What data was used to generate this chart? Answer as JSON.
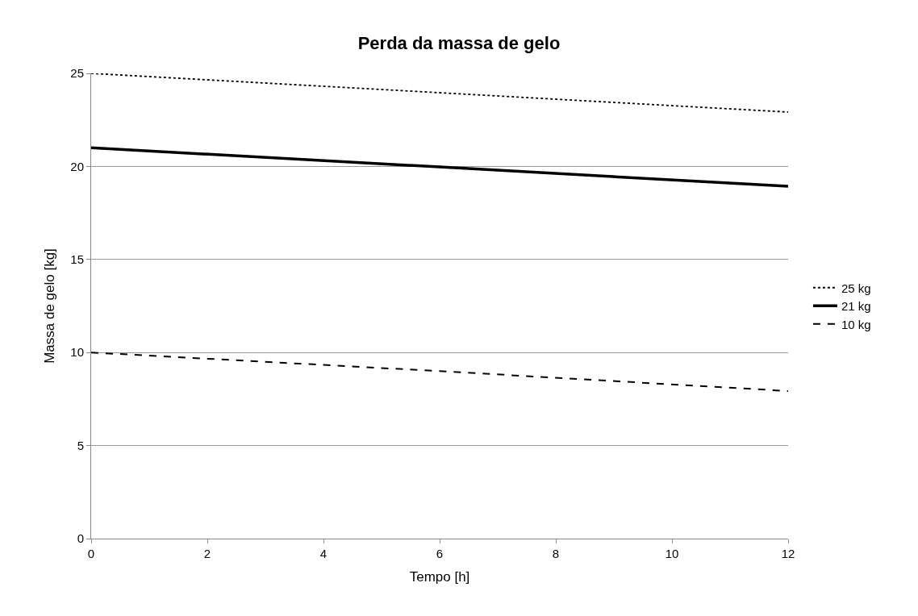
{
  "chart_data": {
    "type": "line",
    "title": "Perda da massa de gelo",
    "xlabel": "Tempo [h]",
    "ylabel": "Massa de gelo [kg]",
    "x": [
      0,
      6,
      12
    ],
    "series": [
      {
        "name": "25 kg",
        "color": "#000000",
        "values": [
          25,
          23.96,
          22.92
        ],
        "line_style": "dotted"
      },
      {
        "name": "21 kg",
        "color": "#000000",
        "values": [
          21,
          19.97,
          18.93
        ],
        "line_style": "solid"
      },
      {
        "name": "10 kg",
        "color": "#000000",
        "values": [
          10,
          9.0,
          7.93
        ],
        "line_style": "dashed"
      }
    ],
    "xlim": [
      0,
      12
    ],
    "xticks": [
      0,
      2,
      4,
      6,
      8,
      10,
      12
    ],
    "ylim": [
      0,
      25
    ],
    "yticks": [
      0,
      5,
      10,
      15,
      20,
      25
    ],
    "grid": "y",
    "legend": "right",
    "marker": "none"
  }
}
